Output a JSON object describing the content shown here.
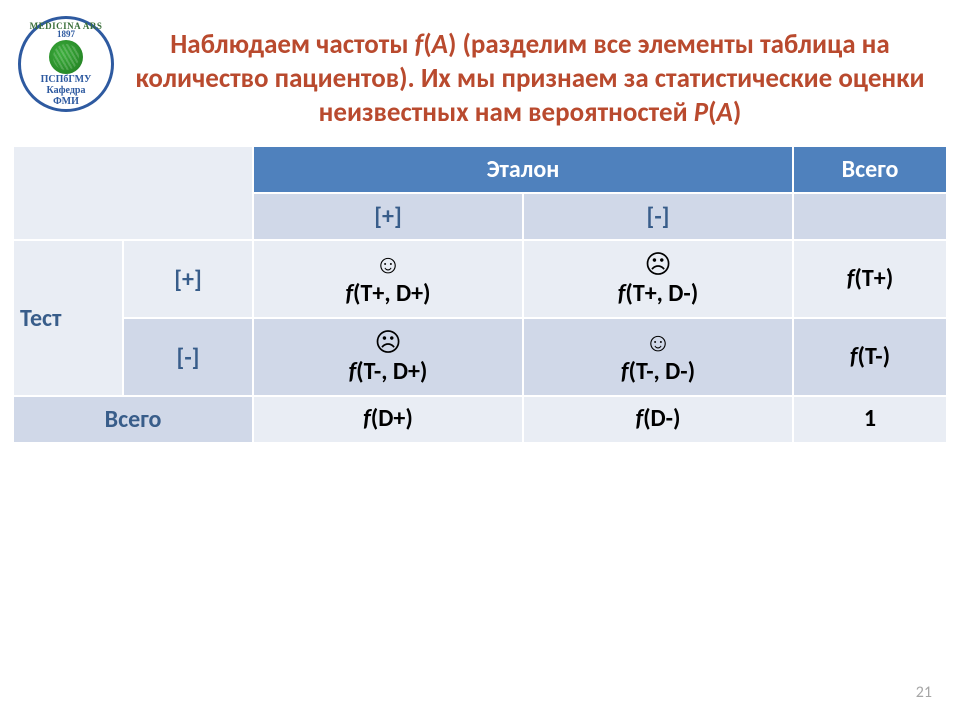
{
  "logo": {
    "top": "MEDICINA ARS",
    "year": "1897",
    "line1": "ПСПбГМУ",
    "line2a": "Кафедра",
    "line2b": "ФМИ"
  },
  "title_parts": {
    "p1": "Наблюдаем частоты ",
    "f": "f",
    "paren1": "(",
    "A": "A",
    "p2": ") (разделим все элементы таблица на количество  пациентов).  Их мы признаем за статистические оценки неизвестных нам вероятностей ",
    "P": "P",
    "paren2": "(",
    "A2": "A",
    "close": ")"
  },
  "table": {
    "headers": {
      "etalon": "Эталон",
      "total": "Всего"
    },
    "signs": {
      "plus": "[+]",
      "minus": "[-]"
    },
    "test_label": "Тест",
    "total_row": "Всего",
    "faces": {
      "good": "☺",
      "bad": "☹"
    },
    "cells": {
      "r1c1_f": "f",
      "r1c1_rest": "(T+, D+)",
      "r1c2_f": "f",
      "r1c2_rest": "(T+, D-)",
      "r1t_f": "f",
      "r1t_rest": "(T+)",
      "r2c1_f": "f",
      "r2c1_rest": "(T-, D+)",
      "r2c2_f": "f",
      "r2c2_rest": "(T-, D-)",
      "r2t_f": "f",
      "r2t_rest": "(T-)",
      "tc1_f": "f",
      "tc1_rest": "(D+)",
      "tc2_f": "f",
      "tc2_rest": "(D-)",
      "grand": "1"
    }
  },
  "pagenum": "21",
  "colors": {
    "title": "#b94a2e",
    "header_bg": "#4f81bd",
    "sub_bg": "#d0d8e8",
    "cell_bg": "#e9edf4",
    "accent_text": "#385d8a",
    "border": "#ffffff",
    "pagenum": "#a6a6a6"
  }
}
